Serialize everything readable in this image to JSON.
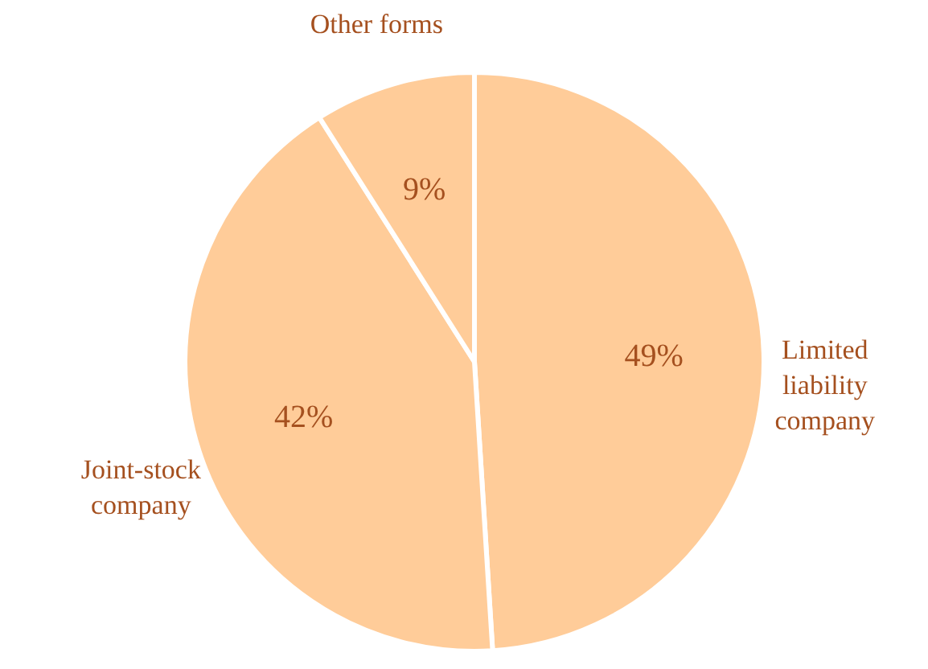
{
  "chart_data": {
    "type": "pie",
    "categories": [
      "Limited liability company",
      "Joint-stock company",
      "Other forms"
    ],
    "values": [
      49,
      42,
      9
    ],
    "colors": [
      "#ffcc99",
      "#ffcc99",
      "#ffcc99"
    ],
    "value_labels": [
      "49%",
      "42%",
      "9%"
    ]
  }
}
